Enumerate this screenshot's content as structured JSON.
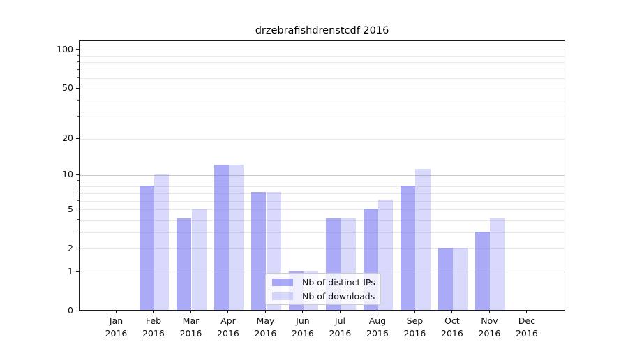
{
  "chart_data": {
    "type": "bar",
    "title": "drzebrafishdrenstcdf 2016",
    "categories": [
      "Jan",
      "Feb",
      "Mar",
      "Apr",
      "May",
      "Jun",
      "Jul",
      "Aug",
      "Sep",
      "Oct",
      "Nov",
      "Dec"
    ],
    "year_label": "2016",
    "series": [
      {
        "name": "Nb of distinct IPs",
        "key": "distinct-ips",
        "fill": "rgba(108,108,240,0.58)",
        "values": [
          0,
          8,
          4,
          12,
          7,
          1,
          4,
          5,
          8,
          2,
          3,
          0
        ]
      },
      {
        "name": "Nb of downloads",
        "key": "downloads",
        "fill": "rgba(108,108,240,0.26)",
        "values": [
          0,
          10,
          5,
          12,
          7,
          1,
          4,
          6,
          11,
          2,
          4,
          0
        ]
      }
    ],
    "y_axis": {
      "scale": "log1p",
      "ylim": [
        0,
        117
      ],
      "tick_values": [
        100,
        50,
        20,
        10,
        5,
        2,
        1,
        0
      ],
      "tick_labels": [
        "100",
        "50",
        "20",
        "10",
        "5",
        "2",
        "1",
        "0"
      ],
      "major_grid_values": [
        100,
        10,
        1
      ],
      "minor_grid_values": [
        90,
        80,
        70,
        60,
        50,
        40,
        30,
        20,
        9,
        8,
        7,
        6,
        5,
        4,
        3,
        2
      ]
    },
    "legend": {
      "position": "lower center",
      "entries": [
        "Nb of distinct IPs",
        "Nb of downloads"
      ]
    },
    "grid": true,
    "colors": {
      "major_grid": "#c9c9c9",
      "minor_grid": "#e9e9e9",
      "spine": "#1a1a1a",
      "bar_base": "#6c6cf0"
    }
  }
}
